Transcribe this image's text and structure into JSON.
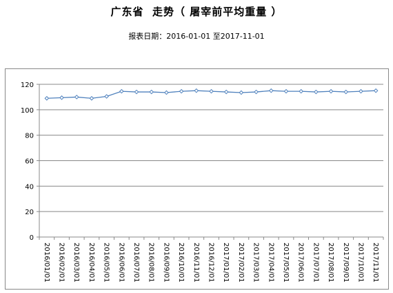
{
  "title": "广东省  走势（ 屠宰前平均重量 ）",
  "subtitle": "报表日期：2016-01-01 至2017-11-01",
  "chart_data": {
    "type": "line",
    "categories": [
      "2016/01/01",
      "2016/02/01",
      "2016/03/01",
      "2016/04/01",
      "2016/05/01",
      "2016/06/01",
      "2016/07/01",
      "2016/08/01",
      "2016/09/01",
      "2016/10/01",
      "2016/11/01",
      "2016/12/01",
      "2017/01/01",
      "2017/02/01",
      "2017/03/01",
      "2017/04/01",
      "2017/05/01",
      "2017/06/01",
      "2017/07/01",
      "2017/08/01",
      "2017/09/01",
      "2017/10/01",
      "2017/11/01"
    ],
    "series": [
      {
        "values": [
          109,
          109.5,
          110,
          109,
          110.5,
          114.5,
          114,
          114,
          113.5,
          114.5,
          115,
          114.5,
          114,
          113.5,
          114,
          115,
          114.5,
          114.5,
          114,
          114.5,
          114,
          114.5,
          115
        ]
      }
    ],
    "ylim": [
      0,
      120
    ],
    "yticks": [
      0,
      20,
      40,
      60,
      80,
      100,
      120
    ],
    "grid": true,
    "line_color": "#4f81bd"
  }
}
